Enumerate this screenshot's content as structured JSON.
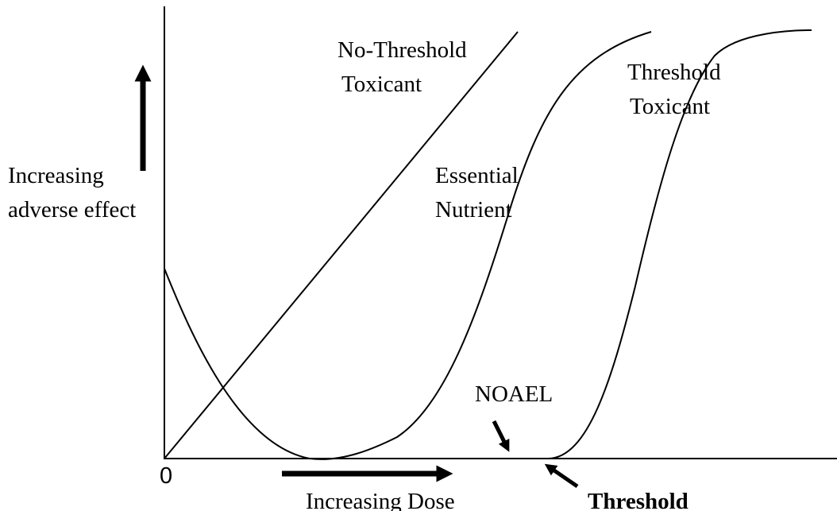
{
  "y_axis_label": {
    "line1": "Increasing",
    "line2": "adverse effect"
  },
  "x_axis_label": "Increasing Dose",
  "origin_label": "0",
  "curves": {
    "no_threshold": {
      "line1": "No-Threshold",
      "line2": "Toxicant"
    },
    "essential_nutrient": {
      "line1": "Essential",
      "line2": "Nutrient"
    },
    "threshold": {
      "line1": "Threshold",
      "line2": "Toxicant"
    }
  },
  "annotations": {
    "noael": "NOAEL",
    "threshold": "Threshold"
  }
}
